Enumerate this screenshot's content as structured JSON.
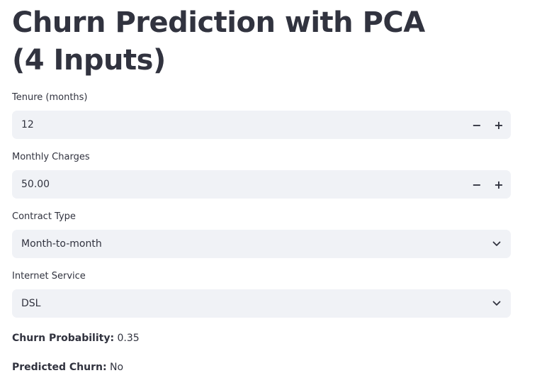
{
  "title": "Churn Prediction with PCA (4 Inputs)",
  "fields": {
    "tenure": {
      "label": "Tenure (months)",
      "value": "12",
      "decrement": "−",
      "increment": "+"
    },
    "monthly_charges": {
      "label": "Monthly Charges",
      "value": "50.00",
      "decrement": "−",
      "increment": "+"
    },
    "contract_type": {
      "label": "Contract Type",
      "value": "Month-to-month",
      "icon": "chevron-down-icon"
    },
    "internet_service": {
      "label": "Internet Service",
      "value": "DSL",
      "icon": "chevron-down-icon"
    }
  },
  "results": {
    "probability_label": "Churn Probability:",
    "probability_value": "0.35",
    "prediction_label": "Predicted Churn:",
    "prediction_value": "No"
  }
}
